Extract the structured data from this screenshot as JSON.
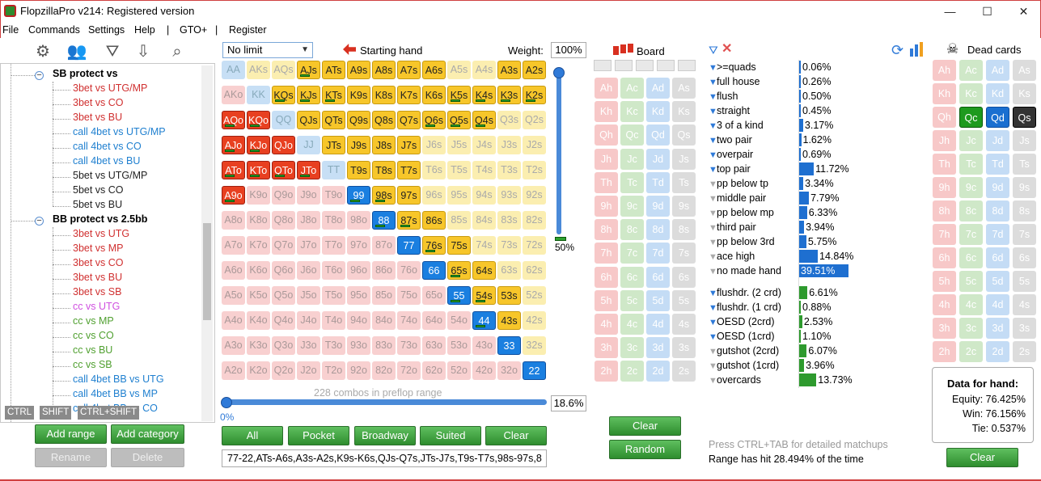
{
  "window": {
    "title": "FlopzillaPro v214: Registered version"
  },
  "menu": [
    "File",
    "Commands",
    "Settings",
    "Help",
    "|",
    "GTO+",
    "|",
    "Register"
  ],
  "tree": {
    "groups": [
      {
        "label": "SB protect vs",
        "items": [
          {
            "label": "3bet vs UTG/MP",
            "color": "#d03030"
          },
          {
            "label": "3bet vs CO",
            "color": "#d03030"
          },
          {
            "label": "3bet vs BU",
            "color": "#d03030"
          },
          {
            "label": "call 4bet vs UTG/MP",
            "color": "#2080d0"
          },
          {
            "label": "call 4bet vs CO",
            "color": "#2080d0"
          },
          {
            "label": "call 4bet vs BU",
            "color": "#2080d0"
          },
          {
            "label": "5bet vs UTG/MP",
            "color": "#222222"
          },
          {
            "label": "5bet vs CO",
            "color": "#222222"
          },
          {
            "label": "5bet vs BU",
            "color": "#222222"
          }
        ]
      },
      {
        "label": "BB protect vs 2.5bb",
        "items": [
          {
            "label": "3bet vs UTG",
            "color": "#d03030"
          },
          {
            "label": "3bet vs MP",
            "color": "#d03030"
          },
          {
            "label": "3bet vs CO",
            "color": "#d03030"
          },
          {
            "label": "3bet vs BU",
            "color": "#d03030"
          },
          {
            "label": "3bet vs SB",
            "color": "#d03030"
          },
          {
            "label": "cc vs UTG",
            "color": "#d050e0"
          },
          {
            "label": "cc vs MP",
            "color": "#50a030"
          },
          {
            "label": "cc vs CO",
            "color": "#50a030"
          },
          {
            "label": "cc vs BU",
            "color": "#50a030"
          },
          {
            "label": "cc vs SB",
            "color": "#50a030"
          },
          {
            "label": "call 4bet BB vs UTG",
            "color": "#2080d0"
          },
          {
            "label": "call 4bet BB vs MP",
            "color": "#2080d0"
          },
          {
            "label": "call 4bet BB vs CO",
            "color": "#2080d0"
          }
        ]
      }
    ],
    "hotkeys": [
      "CTRL",
      "SHIFT",
      "CTRL+SHIFT"
    ]
  },
  "left_buttons": {
    "add_range": "Add range",
    "add_category": "Add category",
    "rename": "Rename",
    "delete": "Delete"
  },
  "matrix": {
    "limit": "No limit",
    "starting_hand": "Starting hand",
    "weight_label": "Weight:",
    "weight": "100%",
    "slider_value": "50%",
    "combos_text": "228 combos in preflop range",
    "range_min": "0%",
    "range_pct": "18.6%",
    "range_text": "77-22,ATs-A6s,A3s-A2s,K9s-K6s,QJs-Q7s,JTs-J7s,T9s-T7s,98s-97s,8",
    "buttons": [
      "All",
      "Pocket",
      "Broadway",
      "Suited",
      "Clear"
    ],
    "rows": [
      [
        "AA",
        "AKs",
        "AQs",
        "AJs",
        "ATs",
        "A9s",
        "A8s",
        "A7s",
        "A6s",
        "A5s",
        "A4s",
        "A3s",
        "A2s"
      ],
      [
        "AKo",
        "KK",
        "KQs",
        "KJs",
        "KTs",
        "K9s",
        "K8s",
        "K7s",
        "K6s",
        "K5s",
        "K4s",
        "K3s",
        "K2s"
      ],
      [
        "AQo",
        "KQo",
        "QQ",
        "QJs",
        "QTs",
        "Q9s",
        "Q8s",
        "Q7s",
        "Q6s",
        "Q5s",
        "Q4s",
        "Q3s",
        "Q2s"
      ],
      [
        "AJo",
        "KJo",
        "QJo",
        "JJ",
        "JTs",
        "J9s",
        "J8s",
        "J7s",
        "J6s",
        "J5s",
        "J4s",
        "J3s",
        "J2s"
      ],
      [
        "ATo",
        "KTo",
        "QTo",
        "JTo",
        "TT",
        "T9s",
        "T8s",
        "T7s",
        "T6s",
        "T5s",
        "T4s",
        "T3s",
        "T2s"
      ],
      [
        "A9o",
        "K9o",
        "Q9o",
        "J9o",
        "T9o",
        "99",
        "98s",
        "97s",
        "96s",
        "95s",
        "94s",
        "93s",
        "92s"
      ],
      [
        "A8o",
        "K8o",
        "Q8o",
        "J8o",
        "T8o",
        "98o",
        "88",
        "87s",
        "86s",
        "85s",
        "84s",
        "83s",
        "82s"
      ],
      [
        "A7o",
        "K7o",
        "Q7o",
        "J7o",
        "T7o",
        "97o",
        "87o",
        "77",
        "76s",
        "75s",
        "74s",
        "73s",
        "72s"
      ],
      [
        "A6o",
        "K6o",
        "Q6o",
        "J6o",
        "T6o",
        "96o",
        "86o",
        "76o",
        "66",
        "65s",
        "64s",
        "63s",
        "62s"
      ],
      [
        "A5o",
        "K5o",
        "Q5o",
        "J5o",
        "T5o",
        "95o",
        "85o",
        "75o",
        "65o",
        "55",
        "54s",
        "53s",
        "52s"
      ],
      [
        "A4o",
        "K4o",
        "Q4o",
        "J4o",
        "T4o",
        "94o",
        "84o",
        "74o",
        "64o",
        "54o",
        "44",
        "43s",
        "42s"
      ],
      [
        "A3o",
        "K3o",
        "Q3o",
        "J3o",
        "T3o",
        "93o",
        "83o",
        "73o",
        "63o",
        "53o",
        "43o",
        "33",
        "32s"
      ],
      [
        "A2o",
        "K2o",
        "Q2o",
        "J2o",
        "T2o",
        "92o",
        "82o",
        "72o",
        "62o",
        "52o",
        "42o",
        "32o",
        "22"
      ]
    ]
  },
  "board": {
    "label": "Board",
    "cards": [
      [
        "Ah",
        "Ac",
        "Ad",
        "As"
      ],
      [
        "Kh",
        "Kc",
        "Kd",
        "Ks"
      ],
      [
        "Qh",
        "Qc",
        "Qd",
        "Qs"
      ],
      [
        "Jh",
        "Jc",
        "Jd",
        "Js"
      ],
      [
        "Th",
        "Tc",
        "Td",
        "Ts"
      ],
      [
        "9h",
        "9c",
        "9d",
        "9s"
      ],
      [
        "8h",
        "8c",
        "8d",
        "8s"
      ],
      [
        "7h",
        "7c",
        "7d",
        "7s"
      ],
      [
        "6h",
        "6c",
        "6d",
        "6s"
      ],
      [
        "5h",
        "5c",
        "5d",
        "5s"
      ],
      [
        "4h",
        "4c",
        "4d",
        "4s"
      ],
      [
        "3h",
        "3c",
        "3d",
        "3s"
      ],
      [
        "2h",
        "2c",
        "2d",
        "2s"
      ]
    ],
    "clear": "Clear",
    "random": "Random"
  },
  "stats": {
    "made": [
      {
        "label": ">=quads",
        "value": "0.06%",
        "pct": 0.06,
        "active": true
      },
      {
        "label": "full house",
        "value": "0.26%",
        "pct": 0.26,
        "active": true
      },
      {
        "label": "flush",
        "value": "0.50%",
        "pct": 0.5,
        "active": true
      },
      {
        "label": "straight",
        "value": "0.45%",
        "pct": 0.45,
        "active": true
      },
      {
        "label": "3 of a kind",
        "value": "3.17%",
        "pct": 3.17,
        "active": true
      },
      {
        "label": "two pair",
        "value": "1.62%",
        "pct": 1.62,
        "active": true
      },
      {
        "label": "overpair",
        "value": "0.69%",
        "pct": 0.69,
        "active": true
      },
      {
        "label": "top pair",
        "value": "11.72%",
        "pct": 11.72,
        "active": true
      },
      {
        "label": "pp below tp",
        "value": "3.34%",
        "pct": 3.34,
        "active": false
      },
      {
        "label": "middle pair",
        "value": "7.79%",
        "pct": 7.79,
        "active": false
      },
      {
        "label": "pp below mp",
        "value": "6.33%",
        "pct": 6.33,
        "active": false
      },
      {
        "label": "third pair",
        "value": "3.94%",
        "pct": 3.94,
        "active": false
      },
      {
        "label": "pp below 3rd",
        "value": "5.75%",
        "pct": 5.75,
        "active": false
      },
      {
        "label": "ace high",
        "value": "14.84%",
        "pct": 14.84,
        "active": false
      },
      {
        "label": "no made hand",
        "value": "39.51%",
        "pct": 39.51,
        "active": false
      }
    ],
    "draws": [
      {
        "label": "flushdr. (2 crd)",
        "value": "6.61%",
        "pct": 6.61,
        "active": true
      },
      {
        "label": "flushdr. (1 crd)",
        "value": "0.88%",
        "pct": 0.88,
        "active": true
      },
      {
        "label": "OESD (2crd)",
        "value": "2.53%",
        "pct": 2.53,
        "active": true
      },
      {
        "label": "OESD (1crd)",
        "value": "1.10%",
        "pct": 1.1,
        "active": true
      },
      {
        "label": "gutshot (2crd)",
        "value": "6.07%",
        "pct": 6.07,
        "active": false
      },
      {
        "label": "gutshot (1crd)",
        "value": "3.96%",
        "pct": 3.96,
        "active": false
      },
      {
        "label": "overcards",
        "value": "13.73%",
        "pct": 13.73,
        "active": false
      }
    ],
    "hint": "Press CTRL+TAB for detailed matchups",
    "range_hit": "Range has hit 28.494% of the time"
  },
  "dead": {
    "label": "Dead cards",
    "data_title": "Data for hand:",
    "equity": "Equity: 76.425%",
    "win": "Win: 76.156%",
    "tie": "Tie: 0.537%",
    "clear": "Clear"
  }
}
